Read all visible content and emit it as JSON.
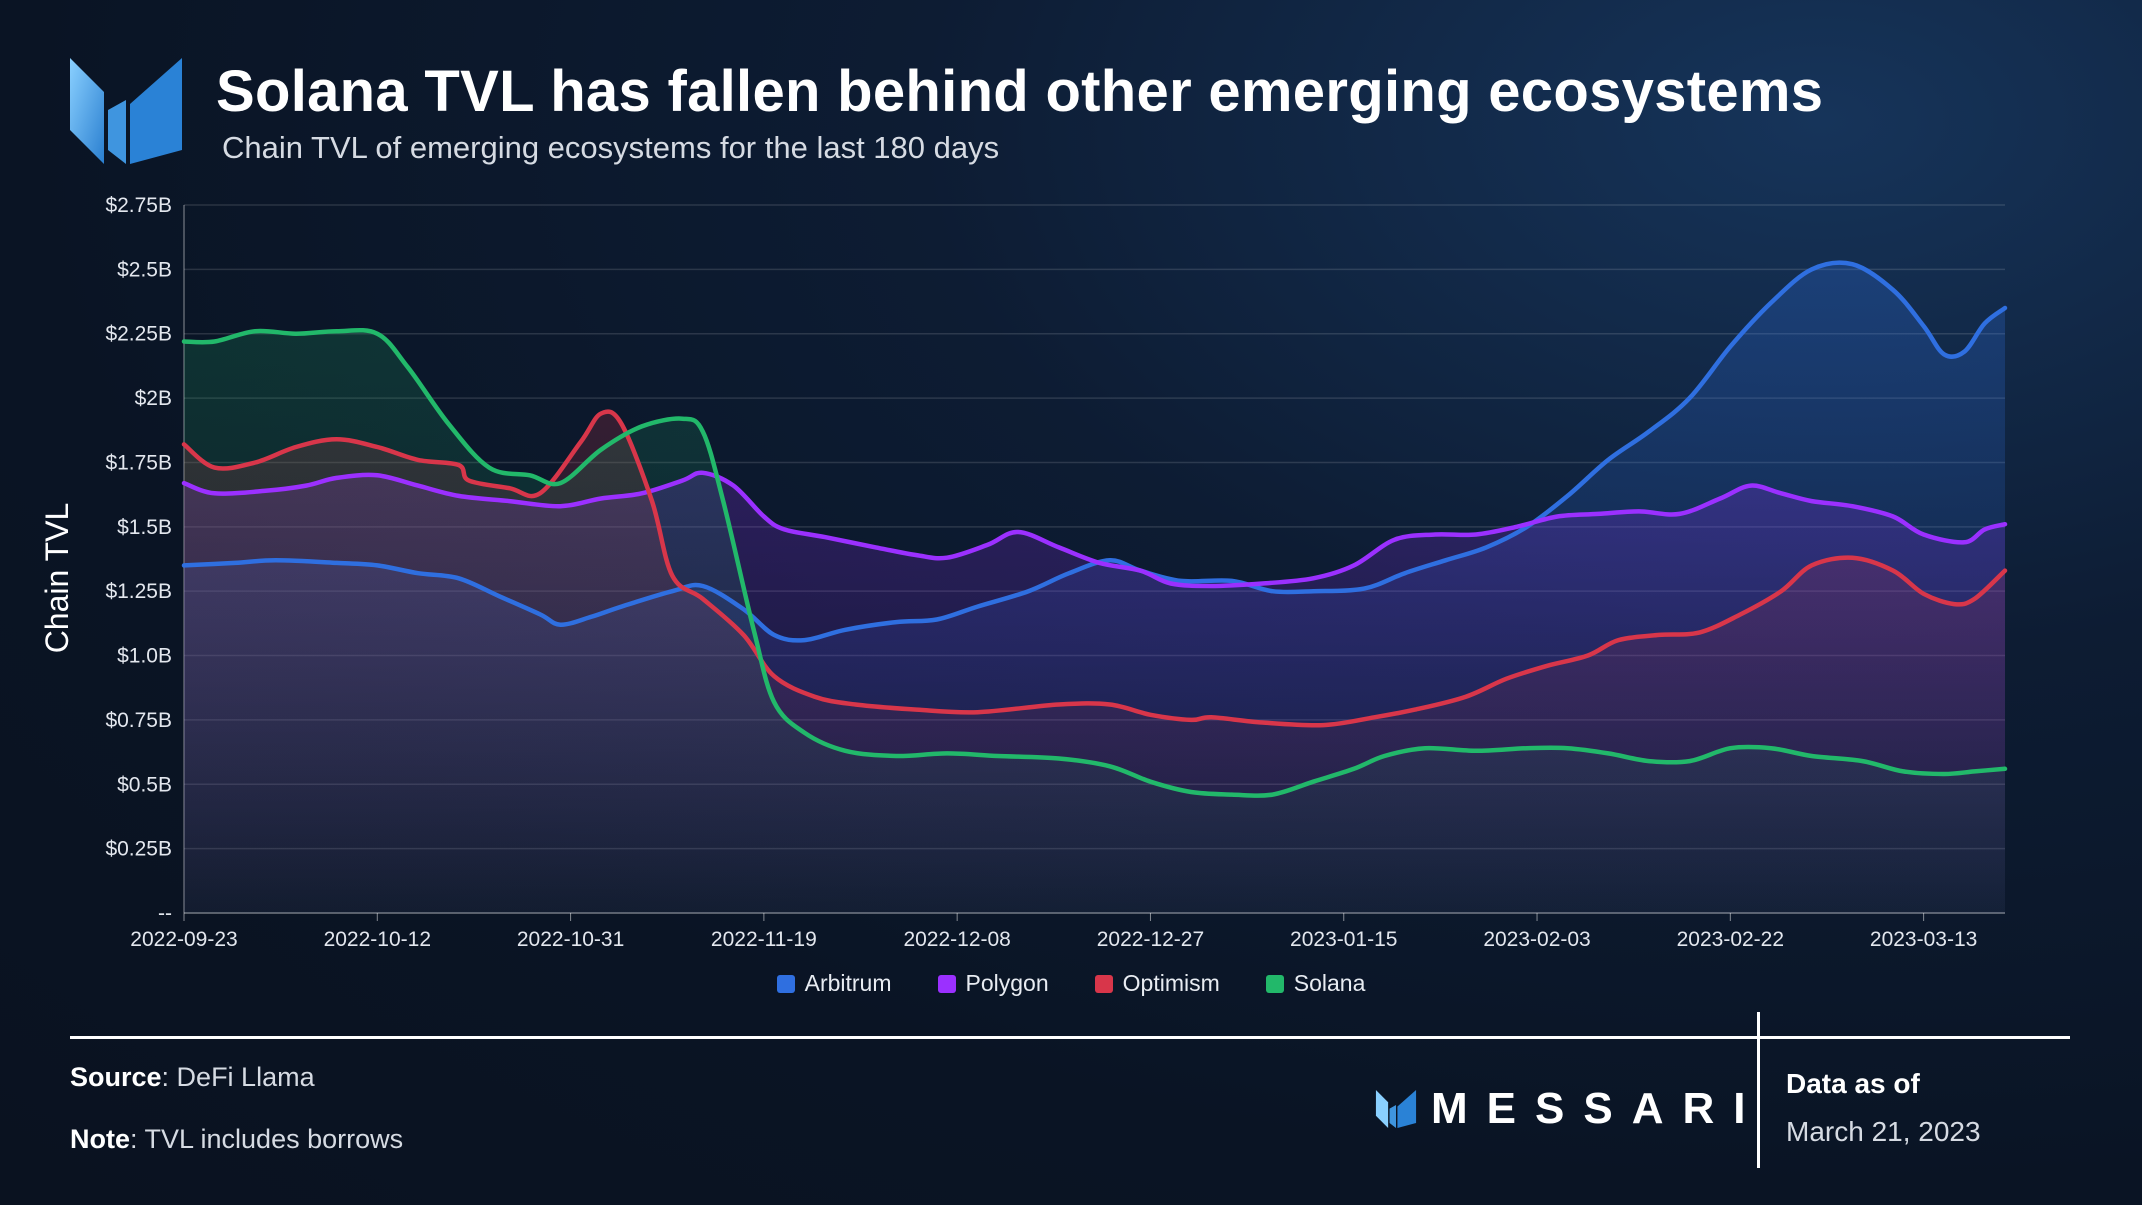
{
  "header": {
    "title": "Solana TVL has fallen behind other emerging ecosystems",
    "subtitle": "Chain TVL of emerging ecosystems for the last 180 days"
  },
  "footer": {
    "source_label": "Source",
    "source_value": ": DeFi Llama",
    "note_label": "Note",
    "note_value": ": TVL includes borrows",
    "brand": "MESSARI",
    "data_as_of_label": "Data as of",
    "data_as_of_date": "March 21, 2023"
  },
  "colors": {
    "Arbitrum": "#2f6fe0",
    "Polygon": "#9b30ff",
    "Optimism": "#d8364a",
    "Solana": "#22b86a",
    "logo": "#4aa3e8"
  },
  "chart_data": {
    "type": "line",
    "title": "Solana TVL has fallen behind other emerging ecosystems",
    "subtitle": "Chain TVL of emerging ecosystems for the last 180 days",
    "ylabel": "Chain TVL",
    "xlabel": "",
    "ylim": [
      0,
      2.75
    ],
    "y_unit": "billion USD",
    "y_ticks": [
      0,
      0.25,
      0.5,
      0.75,
      1.0,
      1.25,
      1.5,
      1.75,
      2.0,
      2.25,
      2.5,
      2.75
    ],
    "y_tick_labels": [
      "--",
      "$0.25B",
      "$0.5B",
      "$0.75B",
      "$1.0B",
      "$1.25B",
      "$1.5B",
      "$1.75B",
      "$2B",
      "$2.25B",
      "$2.5B",
      "$2.75B"
    ],
    "x_tick_labels": [
      "2022-09-23",
      "2022-10-12",
      "2022-10-31",
      "2022-11-19",
      "2022-12-08",
      "2022-12-27",
      "2023-01-15",
      "2023-02-03",
      "2023-02-22",
      "2023-03-13"
    ],
    "xlim": [
      "2022-09-23",
      "2023-03-21"
    ],
    "grid": true,
    "legend": "bottom-center",
    "series": [
      {
        "name": "Arbitrum",
        "points": [
          [
            "2022-09-23",
            1.35
          ],
          [
            "2022-09-28",
            1.36
          ],
          [
            "2022-10-02",
            1.37
          ],
          [
            "2022-10-08",
            1.36
          ],
          [
            "2022-10-12",
            1.35
          ],
          [
            "2022-10-16",
            1.32
          ],
          [
            "2022-10-20",
            1.3
          ],
          [
            "2022-10-24",
            1.23
          ],
          [
            "2022-10-28",
            1.16
          ],
          [
            "2022-10-30",
            1.12
          ],
          [
            "2022-11-02",
            1.15
          ],
          [
            "2022-11-05",
            1.19
          ],
          [
            "2022-11-10",
            1.25
          ],
          [
            "2022-11-13",
            1.27
          ],
          [
            "2022-11-17",
            1.18
          ],
          [
            "2022-11-20",
            1.08
          ],
          [
            "2022-11-23",
            1.06
          ],
          [
            "2022-11-27",
            1.1
          ],
          [
            "2022-12-02",
            1.13
          ],
          [
            "2022-12-06",
            1.14
          ],
          [
            "2022-12-10",
            1.19
          ],
          [
            "2022-12-15",
            1.25
          ],
          [
            "2022-12-19",
            1.32
          ],
          [
            "2022-12-23",
            1.37
          ],
          [
            "2022-12-26",
            1.33
          ],
          [
            "2022-12-30",
            1.29
          ],
          [
            "2023-01-04",
            1.29
          ],
          [
            "2023-01-08",
            1.25
          ],
          [
            "2023-01-12",
            1.25
          ],
          [
            "2023-01-17",
            1.26
          ],
          [
            "2023-01-21",
            1.32
          ],
          [
            "2023-01-25",
            1.37
          ],
          [
            "2023-01-29",
            1.42
          ],
          [
            "2023-02-02",
            1.5
          ],
          [
            "2023-02-06",
            1.62
          ],
          [
            "2023-02-10",
            1.76
          ],
          [
            "2023-02-14",
            1.87
          ],
          [
            "2023-02-18",
            2.0
          ],
          [
            "2023-02-22",
            2.2
          ],
          [
            "2023-02-26",
            2.37
          ],
          [
            "2023-03-02",
            2.5
          ],
          [
            "2023-03-06",
            2.52
          ],
          [
            "2023-03-10",
            2.42
          ],
          [
            "2023-03-13",
            2.28
          ],
          [
            "2023-03-15",
            2.17
          ],
          [
            "2023-03-17",
            2.18
          ],
          [
            "2023-03-19",
            2.29
          ],
          [
            "2023-03-21",
            2.35
          ]
        ]
      },
      {
        "name": "Polygon",
        "points": [
          [
            "2022-09-23",
            1.67
          ],
          [
            "2022-09-26",
            1.63
          ],
          [
            "2022-10-01",
            1.64
          ],
          [
            "2022-10-05",
            1.66
          ],
          [
            "2022-10-08",
            1.69
          ],
          [
            "2022-10-12",
            1.7
          ],
          [
            "2022-10-16",
            1.66
          ],
          [
            "2022-10-20",
            1.62
          ],
          [
            "2022-10-25",
            1.6
          ],
          [
            "2022-10-30",
            1.58
          ],
          [
            "2022-11-03",
            1.61
          ],
          [
            "2022-11-07",
            1.63
          ],
          [
            "2022-11-11",
            1.68
          ],
          [
            "2022-11-13",
            1.71
          ],
          [
            "2022-11-16",
            1.66
          ],
          [
            "2022-11-19",
            1.54
          ],
          [
            "2022-11-21",
            1.49
          ],
          [
            "2022-11-25",
            1.46
          ],
          [
            "2022-11-30",
            1.42
          ],
          [
            "2022-12-04",
            1.39
          ],
          [
            "2022-12-07",
            1.38
          ],
          [
            "2022-12-11",
            1.43
          ],
          [
            "2022-12-14",
            1.48
          ],
          [
            "2022-12-18",
            1.42
          ],
          [
            "2022-12-22",
            1.36
          ],
          [
            "2022-12-26",
            1.33
          ],
          [
            "2022-12-29",
            1.28
          ],
          [
            "2023-01-02",
            1.27
          ],
          [
            "2023-01-07",
            1.28
          ],
          [
            "2023-01-12",
            1.3
          ],
          [
            "2023-01-16",
            1.35
          ],
          [
            "2023-01-20",
            1.45
          ],
          [
            "2023-01-24",
            1.47
          ],
          [
            "2023-01-28",
            1.47
          ],
          [
            "2023-02-01",
            1.5
          ],
          [
            "2023-02-05",
            1.54
          ],
          [
            "2023-02-09",
            1.55
          ],
          [
            "2023-02-13",
            1.56
          ],
          [
            "2023-02-17",
            1.55
          ],
          [
            "2023-02-21",
            1.61
          ],
          [
            "2023-02-24",
            1.66
          ],
          [
            "2023-02-27",
            1.63
          ],
          [
            "2023-03-02",
            1.6
          ],
          [
            "2023-03-06",
            1.58
          ],
          [
            "2023-03-10",
            1.54
          ],
          [
            "2023-03-13",
            1.47
          ],
          [
            "2023-03-17",
            1.44
          ],
          [
            "2023-03-19",
            1.49
          ],
          [
            "2023-03-21",
            1.51
          ]
        ]
      },
      {
        "name": "Optimism",
        "points": [
          [
            "2022-09-23",
            1.82
          ],
          [
            "2022-09-26",
            1.73
          ],
          [
            "2022-09-30",
            1.75
          ],
          [
            "2022-10-04",
            1.81
          ],
          [
            "2022-10-08",
            1.84
          ],
          [
            "2022-10-12",
            1.81
          ],
          [
            "2022-10-16",
            1.76
          ],
          [
            "2022-10-20",
            1.74
          ],
          [
            "2022-10-21",
            1.68
          ],
          [
            "2022-10-25",
            1.65
          ],
          [
            "2022-10-28",
            1.63
          ],
          [
            "2022-11-01",
            1.83
          ],
          [
            "2022-11-03",
            1.94
          ],
          [
            "2022-11-05",
            1.9
          ],
          [
            "2022-11-08",
            1.6
          ],
          [
            "2022-11-10",
            1.31
          ],
          [
            "2022-11-13",
            1.22
          ],
          [
            "2022-11-17",
            1.08
          ],
          [
            "2022-11-20",
            0.92
          ],
          [
            "2022-11-24",
            0.84
          ],
          [
            "2022-11-28",
            0.81
          ],
          [
            "2022-12-04",
            0.79
          ],
          [
            "2022-12-10",
            0.78
          ],
          [
            "2022-12-18",
            0.81
          ],
          [
            "2022-12-23",
            0.81
          ],
          [
            "2022-12-27",
            0.77
          ],
          [
            "2022-12-31",
            0.75
          ],
          [
            "2023-01-02",
            0.76
          ],
          [
            "2023-01-07",
            0.74
          ],
          [
            "2023-01-13",
            0.73
          ],
          [
            "2023-01-18",
            0.76
          ],
          [
            "2023-01-22",
            0.79
          ],
          [
            "2023-01-27",
            0.84
          ],
          [
            "2023-01-31",
            0.91
          ],
          [
            "2023-02-04",
            0.96
          ],
          [
            "2023-02-08",
            1.0
          ],
          [
            "2023-02-11",
            1.06
          ],
          [
            "2023-02-15",
            1.08
          ],
          [
            "2023-02-19",
            1.09
          ],
          [
            "2023-02-23",
            1.16
          ],
          [
            "2023-02-27",
            1.25
          ],
          [
            "2023-03-02",
            1.35
          ],
          [
            "2023-03-06",
            1.38
          ],
          [
            "2023-03-10",
            1.33
          ],
          [
            "2023-03-13",
            1.24
          ],
          [
            "2023-03-16",
            1.2
          ],
          [
            "2023-03-18",
            1.22
          ],
          [
            "2023-03-21",
            1.33
          ]
        ]
      },
      {
        "name": "Solana",
        "points": [
          [
            "2022-09-23",
            2.22
          ],
          [
            "2022-09-26",
            2.22
          ],
          [
            "2022-09-30",
            2.26
          ],
          [
            "2022-10-04",
            2.25
          ],
          [
            "2022-10-08",
            2.26
          ],
          [
            "2022-10-12",
            2.25
          ],
          [
            "2022-10-15",
            2.12
          ],
          [
            "2022-10-19",
            1.9
          ],
          [
            "2022-10-23",
            1.73
          ],
          [
            "2022-10-27",
            1.7
          ],
          [
            "2022-10-30",
            1.67
          ],
          [
            "2022-11-03",
            1.8
          ],
          [
            "2022-11-07",
            1.89
          ],
          [
            "2022-11-11",
            1.92
          ],
          [
            "2022-11-13",
            1.87
          ],
          [
            "2022-11-15",
            1.6
          ],
          [
            "2022-11-18",
            1.1
          ],
          [
            "2022-11-20",
            0.82
          ],
          [
            "2022-11-23",
            0.7
          ],
          [
            "2022-11-27",
            0.63
          ],
          [
            "2022-12-02",
            0.61
          ],
          [
            "2022-12-07",
            0.62
          ],
          [
            "2022-12-12",
            0.61
          ],
          [
            "2022-12-18",
            0.6
          ],
          [
            "2022-12-23",
            0.57
          ],
          [
            "2022-12-27",
            0.51
          ],
          [
            "2022-12-31",
            0.47
          ],
          [
            "2023-01-04",
            0.46
          ],
          [
            "2023-01-08",
            0.46
          ],
          [
            "2023-01-12",
            0.51
          ],
          [
            "2023-01-16",
            0.56
          ],
          [
            "2023-01-19",
            0.61
          ],
          [
            "2023-01-23",
            0.64
          ],
          [
            "2023-01-28",
            0.63
          ],
          [
            "2023-02-02",
            0.64
          ],
          [
            "2023-02-06",
            0.64
          ],
          [
            "2023-02-10",
            0.62
          ],
          [
            "2023-02-14",
            0.59
          ],
          [
            "2023-02-18",
            0.59
          ],
          [
            "2023-02-22",
            0.64
          ],
          [
            "2023-02-26",
            0.64
          ],
          [
            "2023-03-02",
            0.61
          ],
          [
            "2023-03-07",
            0.59
          ],
          [
            "2023-03-11",
            0.55
          ],
          [
            "2023-03-15",
            0.54
          ],
          [
            "2023-03-18",
            0.55
          ],
          [
            "2023-03-21",
            0.56
          ]
        ]
      }
    ]
  }
}
